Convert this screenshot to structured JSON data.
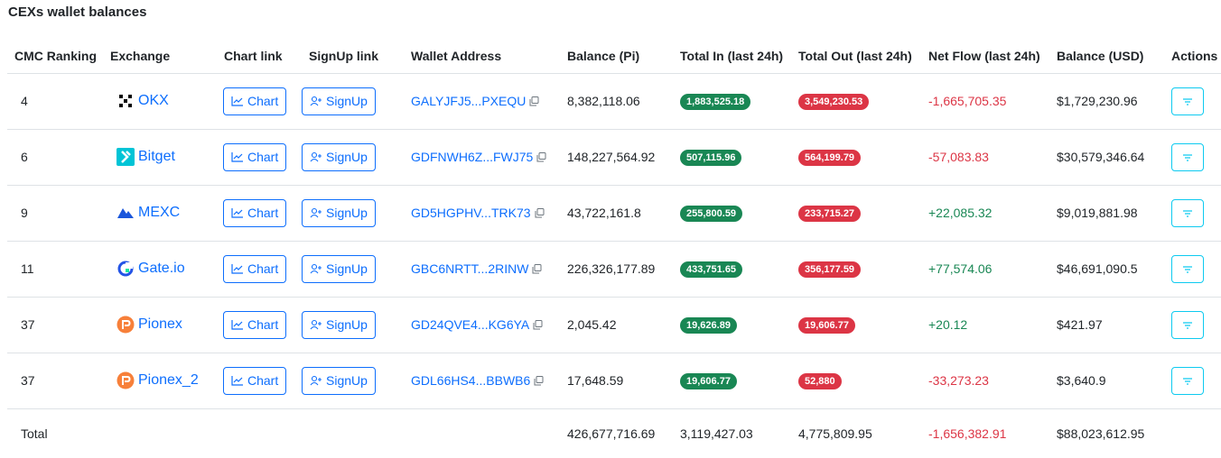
{
  "title": "CEXs wallet balances",
  "headers": [
    "CMC Ranking",
    "Exchange",
    "Chart link",
    "SignUp link",
    "Wallet Address",
    "Balance (Pi)",
    "Total In (last 24h)",
    "Total Out (last 24h)",
    "Net Flow (last 24h)",
    "Balance (USD)",
    "Actions"
  ],
  "chart_label": "Chart",
  "signup_label": "SignUp",
  "rows": [
    {
      "rank": "4",
      "exchange": "OKX",
      "logo": "okx-logo-icon",
      "address": "GALYJFJ5...PXEQU",
      "balance_pi": "8,382,118.06",
      "total_in": "1,883,525.18",
      "total_out": "3,549,230.53",
      "net_flow": "-1,665,705.35",
      "net_dir": "neg",
      "balance_usd": "$1,729,230.96"
    },
    {
      "rank": "6",
      "exchange": "Bitget",
      "logo": "bitget-logo-icon",
      "address": "GDFNWH6Z...FWJ75",
      "balance_pi": "148,227,564.92",
      "total_in": "507,115.96",
      "total_out": "564,199.79",
      "net_flow": "-57,083.83",
      "net_dir": "neg",
      "balance_usd": "$30,579,346.64"
    },
    {
      "rank": "9",
      "exchange": "MEXC",
      "logo": "mexc-logo-icon",
      "address": "GD5HGPHV...TRK73",
      "balance_pi": "43,722,161.8",
      "total_in": "255,800.59",
      "total_out": "233,715.27",
      "net_flow": "+22,085.32",
      "net_dir": "pos",
      "balance_usd": "$9,019,881.98"
    },
    {
      "rank": "11",
      "exchange": "Gate.io",
      "logo": "gateio-logo-icon",
      "address": "GBC6NRTT...2RINW",
      "balance_pi": "226,326,177.89",
      "total_in": "433,751.65",
      "total_out": "356,177.59",
      "net_flow": "+77,574.06",
      "net_dir": "pos",
      "balance_usd": "$46,691,090.5"
    },
    {
      "rank": "37",
      "exchange": "Pionex",
      "logo": "pionex-logo-icon",
      "address": "GD24QVE4...KG6YA",
      "balance_pi": "2,045.42",
      "total_in": "19,626.89",
      "total_out": "19,606.77",
      "net_flow": "+20.12",
      "net_dir": "pos",
      "balance_usd": "$421.97"
    },
    {
      "rank": "37",
      "exchange": "Pionex_2",
      "logo": "pionex-logo-icon",
      "address": "GDL66HS4...BBWB6",
      "balance_pi": "17,648.59",
      "total_in": "19,606.77",
      "total_out": "52,880",
      "net_flow": "-33,273.23",
      "net_dir": "neg",
      "balance_usd": "$3,640.9"
    }
  ],
  "total": {
    "label": "Total",
    "balance_pi": "426,677,716.69",
    "total_in": "3,119,427.03",
    "total_out": "4,775,809.95",
    "net_flow": "-1,656,382.91",
    "balance_usd": "$88,023,612.95"
  },
  "colors": {
    "link": "#0d6efd",
    "in_badge": "#198754",
    "out_badge": "#dc3545",
    "action": "#0dcaf0"
  }
}
